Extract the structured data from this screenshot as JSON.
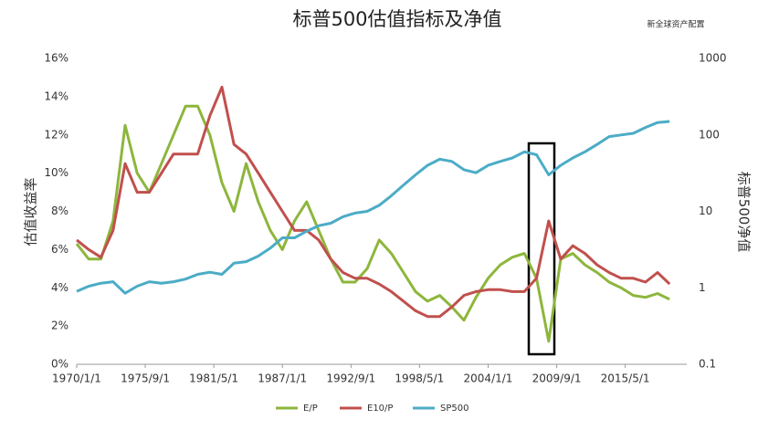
{
  "chart_data": {
    "type": "line",
    "title": "标普500估值指标及净值",
    "source": "新全球资产配置",
    "ylabel": "估值收益率",
    "y2label": "标普500净值",
    "x": [
      "1970/1/1",
      "1971/1/1",
      "1972/1/1",
      "1973/1/1",
      "1974/1/1",
      "1975/1/1",
      "1976/1/1",
      "1977/1/1",
      "1978/1/1",
      "1979/1/1",
      "1980/1/1",
      "1981/1/1",
      "1982/1/1",
      "1983/1/1",
      "1984/1/1",
      "1985/1/1",
      "1986/1/1",
      "1987/1/1",
      "1988/1/1",
      "1989/1/1",
      "1990/1/1",
      "1991/1/1",
      "1992/1/1",
      "1993/1/1",
      "1994/1/1",
      "1995/1/1",
      "1996/1/1",
      "1997/1/1",
      "1998/1/1",
      "1999/1/1",
      "2000/1/1",
      "2001/1/1",
      "2002/1/1",
      "2003/1/1",
      "2004/1/1",
      "2005/1/1",
      "2006/1/1",
      "2007/1/1",
      "2008/1/1",
      "2009/1/1",
      "2010/1/1",
      "2011/1/1",
      "2012/1/1",
      "2013/1/1",
      "2014/1/1",
      "2015/1/1",
      "2016/1/1",
      "2017/1/1",
      "2018/1/1",
      "2019/1/1"
    ],
    "xlim": [
      "1970/1/1",
      "2020/6/1"
    ],
    "xticks": [
      "1970/1/1",
      "1975/9/1",
      "1981/5/1",
      "1987/1/1",
      "1992/9/1",
      "1998/5/1",
      "2004/1/1",
      "2009/9/1",
      "2015/5/1"
    ],
    "ylim": [
      0,
      16
    ],
    "yticks": [
      {
        "value": 0,
        "label": "0%"
      },
      {
        "value": 2,
        "label": "2%"
      },
      {
        "value": 4,
        "label": "4%"
      },
      {
        "value": 6,
        "label": "6%"
      },
      {
        "value": 8,
        "label": "8%"
      },
      {
        "value": 10,
        "label": "10%"
      },
      {
        "value": 12,
        "label": "12%"
      },
      {
        "value": 14,
        "label": "14%"
      },
      {
        "value": 16,
        "label": "16%"
      }
    ],
    "y2lim": [
      0.1,
      1000
    ],
    "y2ticks": [
      0.1,
      1,
      10,
      100,
      1000
    ],
    "y2_log": true,
    "series": [
      {
        "name": "E/P",
        "color": "#8db63c",
        "values": [
          6.3,
          5.5,
          5.5,
          7.5,
          12.5,
          10,
          9,
          10.5,
          12,
          13.5,
          13.5,
          12,
          9.5,
          8,
          10.5,
          8.5,
          7,
          6,
          7.5,
          8.5,
          7,
          5.5,
          4.3,
          4.3,
          5,
          6.5,
          5.8,
          4.8,
          3.8,
          3.3,
          3.6,
          3.0,
          2.3,
          3.5,
          4.5,
          5.2,
          5.6,
          5.8,
          4.5,
          1.2,
          5.5,
          5.8,
          5.2,
          4.8,
          4.3,
          4.0,
          3.6,
          3.5,
          3.7,
          3.4
        ]
      },
      {
        "name": "E10/P",
        "color": "#c0504d",
        "values": [
          6.5,
          6,
          5.6,
          7,
          10.5,
          9,
          9,
          10,
          11,
          11,
          11,
          13,
          14.5,
          11.5,
          11,
          10,
          9,
          8,
          7,
          7,
          6.5,
          5.5,
          4.8,
          4.5,
          4.5,
          4.2,
          3.8,
          3.3,
          2.8,
          2.5,
          2.5,
          3,
          3.6,
          3.8,
          3.9,
          3.9,
          3.8,
          3.8,
          4.5,
          7.5,
          5.5,
          6.2,
          5.8,
          5.2,
          4.8,
          4.5,
          4.5,
          4.3,
          4.8,
          4.2
        ]
      },
      {
        "name": "SP500",
        "color": "#4bacc6",
        "axis": "y2",
        "values": [
          0.9,
          1.05,
          1.15,
          1.2,
          0.85,
          1.05,
          1.2,
          1.15,
          1.2,
          1.3,
          1.5,
          1.6,
          1.5,
          2.1,
          2.2,
          2.6,
          3.3,
          4.5,
          4.5,
          5.5,
          6.5,
          7,
          8.5,
          9.5,
          10,
          12,
          16,
          22,
          30,
          40,
          48,
          45,
          35,
          32,
          40,
          45,
          50,
          60,
          55,
          30,
          40,
          50,
          60,
          75,
          95,
          100,
          105,
          125,
          145,
          150
        ]
      }
    ]
  }
}
